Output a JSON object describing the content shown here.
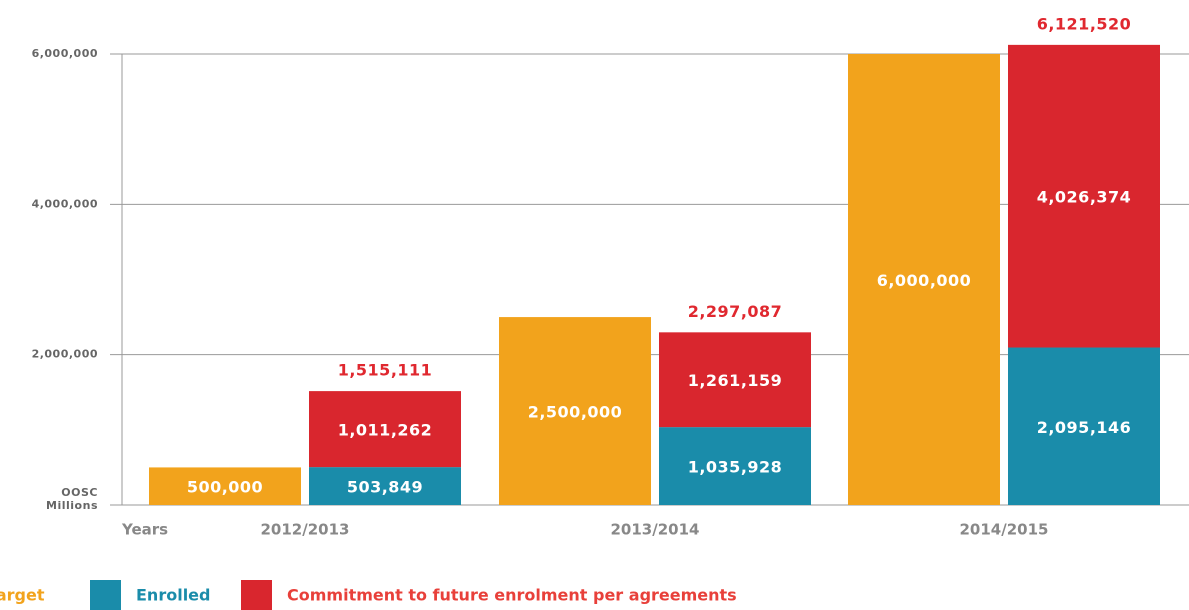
{
  "chart_data": {
    "type": "bar",
    "categories": [
      "2012/2013",
      "2013/2014",
      "2014/2015"
    ],
    "x_axis_label": "Years",
    "y_axis_label": [
      "OOSC",
      "Millions"
    ],
    "series": [
      {
        "name": "Target",
        "color": "#f2a31c",
        "values": [
          500000,
          2500000,
          6000000
        ],
        "value_labels": [
          "500,000",
          "2,500,000",
          "6,000,000"
        ]
      },
      {
        "name": "Enrolled",
        "color": "#1a8caa",
        "values": [
          503849,
          1035928,
          2095146
        ],
        "value_labels": [
          "503,849",
          "1,035,928",
          "2,095,146"
        ],
        "stack": "b"
      },
      {
        "name": "Commitment to future enrolment per agreements",
        "color": "#d9262e",
        "values": [
          1011262,
          1261159,
          4026374
        ],
        "value_labels": [
          "1,011,262",
          "1,261,159",
          "4,026,374"
        ],
        "stack": "b"
      }
    ],
    "totals": {
      "values": [
        1515111,
        2297087,
        6121520
      ],
      "value_labels": [
        "1,515,111",
        "2,297,087",
        "6,121,520"
      ],
      "color": "#e0282f"
    },
    "ylim": [
      0,
      6000000
    ],
    "yticks": [
      {
        "value": 2000000,
        "label": "2,000,000"
      },
      {
        "value": 4000000,
        "label": "4,000,000"
      },
      {
        "value": 6000000,
        "label": "6,000,000"
      }
    ],
    "grid": true
  }
}
